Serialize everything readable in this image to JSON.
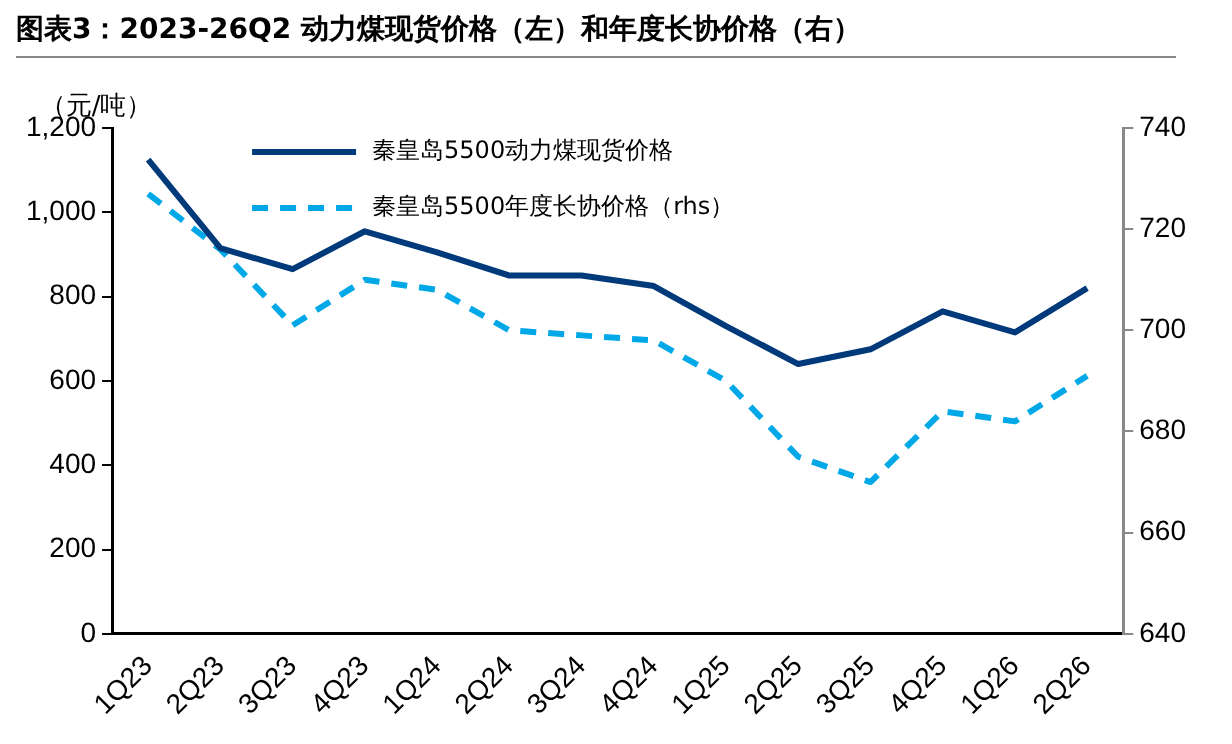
{
  "chart_data": {
    "type": "line",
    "title": "图表3：2023-26Q2 动力煤现货价格（左）和年度长协价格（右）",
    "ylabel": "（元/吨）",
    "categories": [
      "1Q23",
      "2Q23",
      "3Q23",
      "4Q23",
      "1Q24",
      "2Q24",
      "3Q24",
      "4Q24",
      "1Q25",
      "2Q25",
      "3Q25",
      "4Q25",
      "1Q26",
      "2Q26"
    ],
    "series": [
      {
        "name": "秦皇岛5500动力煤现货价格",
        "color": "#003a7a",
        "line_style": "solid",
        "values": [
          1125,
          915,
          865,
          955,
          905,
          850,
          850,
          825,
          730,
          640,
          675,
          765,
          715,
          820
        ]
      },
      {
        "name": "秦皇岛5500年度长协价格（rhs）",
        "color": "#00a8e8",
        "line_style": "dashed",
        "axis": "y2",
        "values": [
          727,
          716,
          701,
          710,
          708,
          700,
          699,
          698,
          690,
          675,
          670,
          684,
          682,
          691
        ]
      }
    ],
    "ylim": [
      0,
      1200
    ],
    "yticks": [
      0,
      200,
      400,
      600,
      800,
      {
        "value": 1000,
        "label": "1,000"
      },
      {
        "value": 1200,
        "label": "1,200"
      }
    ],
    "y2lim": [
      640,
      740
    ],
    "y2ticks": [
      640,
      660,
      680,
      700,
      720,
      740
    ],
    "legend": "top",
    "marker": "none",
    "grid": false
  }
}
